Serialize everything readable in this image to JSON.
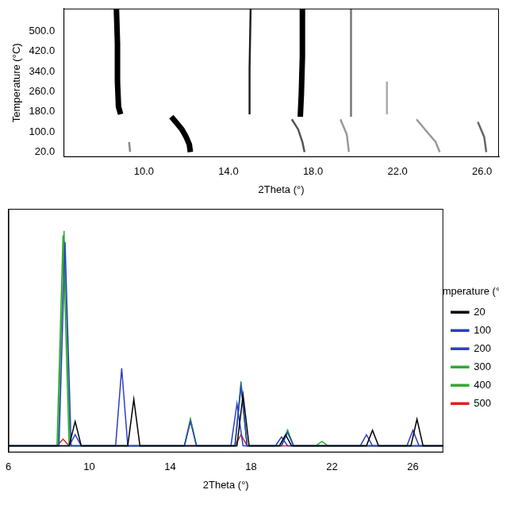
{
  "chart_data": [
    {
      "type": "line",
      "xlabel": "2Theta (°)",
      "ylabel": "Temperature (°C)",
      "xlim": [
        6.2,
        26.8
      ],
      "ylim": [
        0,
        590
      ],
      "xticks": [
        {
          "value": 10,
          "label": "10.0"
        },
        {
          "value": 14,
          "label": "14.0"
        },
        {
          "value": 18,
          "label": "18.0"
        },
        {
          "value": 22,
          "label": "22.0"
        },
        {
          "value": 26,
          "label": "26.0"
        }
      ],
      "yticks": [
        {
          "value": 20,
          "label": "20.0"
        },
        {
          "value": 100,
          "label": "100.0"
        },
        {
          "value": 180,
          "label": "180.0"
        },
        {
          "value": 260,
          "label": "260.0"
        },
        {
          "value": 340,
          "label": "340.0"
        },
        {
          "value": 420,
          "label": "420.0"
        },
        {
          "value": 500,
          "label": "500.0"
        }
      ],
      "grid": false,
      "series": [
        {
          "color": "#000000",
          "line_style": "bold",
          "x": [
            12.2,
            12.15,
            12.0,
            11.8,
            11.6,
            11.4,
            11.3
          ],
          "values": [
            20,
            50,
            80,
            110,
            130,
            150,
            160
          ]
        },
        {
          "color": "#888888",
          "line_style": "solid",
          "x": [
            9.35,
            9.3
          ],
          "values": [
            20,
            60
          ]
        },
        {
          "color": "#000000",
          "line_style": "bold",
          "x": [
            8.9,
            8.8,
            8.75,
            8.75,
            8.7
          ],
          "values": [
            170,
            200,
            300,
            450,
            590
          ]
        },
        {
          "color": "#222222",
          "line_style": "solid",
          "x": [
            15.0,
            15.0,
            15.05
          ],
          "values": [
            170,
            350,
            590
          ]
        },
        {
          "color": "#000000",
          "line_style": "bold",
          "x": [
            17.4,
            17.45,
            17.5,
            17.5
          ],
          "values": [
            160,
            250,
            400,
            590
          ]
        },
        {
          "color": "#555555",
          "line_style": "solid",
          "x": [
            17.6,
            17.5,
            17.3,
            17.0
          ],
          "values": [
            20,
            60,
            110,
            150
          ]
        },
        {
          "color": "#777777",
          "line_style": "solid",
          "x": [
            19.8,
            19.8
          ],
          "values": [
            160,
            590
          ]
        },
        {
          "color": "#999999",
          "line_style": "solid",
          "x": [
            19.7,
            19.6,
            19.3
          ],
          "values": [
            20,
            90,
            150
          ]
        },
        {
          "color": "#aaaaaa",
          "line_style": "solid",
          "x": [
            21.5,
            21.5
          ],
          "values": [
            170,
            300
          ]
        },
        {
          "color": "#999999",
          "line_style": "solid",
          "x": [
            24.0,
            23.8,
            23.3,
            22.9
          ],
          "values": [
            20,
            60,
            110,
            150
          ]
        },
        {
          "color": "#666666",
          "line_style": "solid",
          "x": [
            26.2,
            26.1,
            25.8
          ],
          "values": [
            20,
            80,
            140
          ]
        }
      ]
    },
    {
      "type": "line",
      "xlabel": "2Theta (°)",
      "zlabel": "Temperature (°C)",
      "xlim": [
        6,
        27.5
      ],
      "ylim": [
        0,
        110
      ],
      "xticks": [
        6,
        10,
        14,
        18,
        22,
        26
      ],
      "yticks": [],
      "tick_labels": "x",
      "grid": false,
      "legend": "right",
      "series": [
        {
          "name": "20",
          "color": "#000000",
          "line_style": "thin",
          "x": [
            6,
            9.0,
            9.3,
            9.6,
            11.9,
            12.2,
            12.5,
            17.3,
            17.6,
            17.9,
            19.4,
            19.7,
            20.0,
            23.7,
            24.0,
            24.3,
            25.9,
            26.2,
            26.5,
            27.5
          ],
          "values": [
            3,
            3,
            14,
            3,
            3,
            24,
            3,
            3,
            26,
            3,
            3,
            8,
            3,
            3,
            10,
            3,
            3,
            15,
            3,
            3
          ]
        },
        {
          "name": "100",
          "color": "#2a3fc8",
          "line_style": "thin",
          "x": [
            6,
            9.0,
            9.3,
            9.6,
            11.3,
            11.6,
            11.9,
            17.0,
            17.3,
            17.6,
            19.2,
            19.5,
            19.8,
            23.4,
            23.7,
            24.0,
            25.7,
            26.0,
            26.3,
            27.5
          ],
          "values": [
            3,
            3,
            8,
            3,
            3,
            38,
            3,
            3,
            22,
            3,
            3,
            7,
            3,
            3,
            8,
            3,
            3,
            10,
            3,
            3
          ]
        },
        {
          "name": "200",
          "color": "#2a3fc8",
          "line_style": "thin",
          "x": [
            6,
            8.5,
            8.8,
            9.1,
            14.7,
            15.0,
            15.3,
            17.2,
            17.5,
            17.8,
            19.5,
            19.8,
            20.1,
            27.5
          ],
          "values": [
            3,
            3,
            95,
            3,
            3,
            14,
            3,
            3,
            30,
            3,
            3,
            9,
            3,
            3
          ]
        },
        {
          "name": "300",
          "color": "#33aa33",
          "line_style": "thin",
          "x": [
            6,
            8.45,
            8.75,
            9.05,
            14.7,
            15.0,
            15.3,
            17.2,
            17.5,
            17.8,
            19.5,
            19.8,
            20.1,
            21.2,
            21.5,
            21.8,
            27.5
          ],
          "values": [
            3,
            3,
            100,
            3,
            3,
            15,
            3,
            3,
            32,
            3,
            3,
            10,
            3,
            3,
            5,
            3,
            3
          ]
        },
        {
          "name": "400",
          "color": "#33aa33",
          "line_style": "thin",
          "x": [
            6,
            8.4,
            8.7,
            9.0,
            14.7,
            15.0,
            15.3,
            17.2,
            17.5,
            17.8,
            19.5,
            19.8,
            20.1,
            27.5
          ],
          "values": [
            3,
            3,
            98,
            3,
            3,
            15,
            3,
            3,
            31,
            3,
            3,
            10,
            3,
            3
          ]
        },
        {
          "name": "500",
          "color": "#e02020",
          "line_style": "thin",
          "x": [
            6,
            8.4,
            8.7,
            9.0,
            17.2,
            17.5,
            17.8,
            27.5
          ],
          "values": [
            3,
            3,
            6,
            3,
            3,
            8,
            3,
            3
          ]
        }
      ]
    }
  ]
}
